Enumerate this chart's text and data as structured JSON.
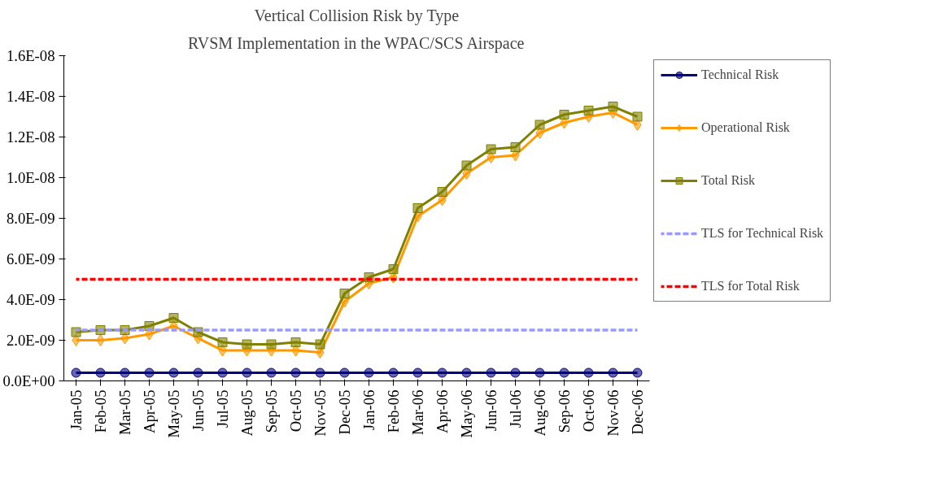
{
  "chart_data": {
    "type": "line",
    "title": "Vertical Collision Risk by Type",
    "subtitle": "RVSM Implementation in the WPAC/SCS Airspace",
    "categories": [
      "Jan-05",
      "Feb-05",
      "Mar-05",
      "Apr-05",
      "May-05",
      "Jun-05",
      "Jul-05",
      "Aug-05",
      "Sep-05",
      "Oct-05",
      "Nov-05",
      "Dec-05",
      "Jan-06",
      "Feb-06",
      "Mar-06",
      "Apr-06",
      "May-06",
      "Jun-06",
      "Jul-06",
      "Aug-06",
      "Sep-06",
      "Oct-06",
      "Nov-06",
      "Dec-06"
    ],
    "series": [
      {
        "name": "Technical Risk",
        "color": "#000080",
        "marker": "circle",
        "line_style": "solid",
        "values": [
          4e-10,
          4e-10,
          4e-10,
          4e-10,
          4e-10,
          4e-10,
          4e-10,
          4e-10,
          4e-10,
          4e-10,
          4e-10,
          4e-10,
          4e-10,
          4e-10,
          4e-10,
          4e-10,
          4e-10,
          4e-10,
          4e-10,
          4e-10,
          4e-10,
          4e-10,
          4e-10,
          4e-10
        ]
      },
      {
        "name": "Operational Risk",
        "color": "#ff9900",
        "marker": "diamond",
        "line_style": "solid",
        "values": [
          2e-09,
          2e-09,
          2.1e-09,
          2.3e-09,
          2.7e-09,
          2.1e-09,
          1.5e-09,
          1.5e-09,
          1.5e-09,
          1.5e-09,
          1.4e-09,
          3.9e-09,
          4.8e-09,
          5.1e-09,
          8.1e-09,
          8.9e-09,
          1.02e-08,
          1.1e-08,
          1.11e-08,
          1.22e-08,
          1.27e-08,
          1.3e-08,
          1.32e-08,
          1.26e-08
        ]
      },
      {
        "name": "Total Risk",
        "color": "#808000",
        "marker": "square",
        "line_style": "solid",
        "values": [
          2.4e-09,
          2.5e-09,
          2.5e-09,
          2.7e-09,
          3.1e-09,
          2.4e-09,
          1.9e-09,
          1.8e-09,
          1.8e-09,
          1.9e-09,
          1.8e-09,
          4.3e-09,
          5.1e-09,
          5.5e-09,
          8.5e-09,
          9.3e-09,
          1.06e-08,
          1.14e-08,
          1.15e-08,
          1.26e-08,
          1.31e-08,
          1.33e-08,
          1.35e-08,
          1.3e-08
        ]
      },
      {
        "name": "TLS for Technical Risk",
        "color": "#9999ff",
        "marker": "none",
        "line_style": "dashed",
        "values": [
          2.5e-09,
          2.5e-09,
          2.5e-09,
          2.5e-09,
          2.5e-09,
          2.5e-09,
          2.5e-09,
          2.5e-09,
          2.5e-09,
          2.5e-09,
          2.5e-09,
          2.5e-09,
          2.5e-09,
          2.5e-09,
          2.5e-09,
          2.5e-09,
          2.5e-09,
          2.5e-09,
          2.5e-09,
          2.5e-09,
          2.5e-09,
          2.5e-09,
          2.5e-09,
          2.5e-09
        ]
      },
      {
        "name": "TLS for Total Risk",
        "color": "#ff0000",
        "marker": "none",
        "line_style": "dashed",
        "values": [
          5e-09,
          5e-09,
          5e-09,
          5e-09,
          5e-09,
          5e-09,
          5e-09,
          5e-09,
          5e-09,
          5e-09,
          5e-09,
          5e-09,
          5e-09,
          5e-09,
          5e-09,
          5e-09,
          5e-09,
          5e-09,
          5e-09,
          5e-09,
          5e-09,
          5e-09,
          5e-09,
          5e-09
        ]
      }
    ],
    "ylim": [
      0,
      1.6e-08
    ],
    "yticks": [
      {
        "value": 0,
        "label": "0.0E+00"
      },
      {
        "value": 2e-09,
        "label": "2.0E-09"
      },
      {
        "value": 4e-09,
        "label": "4.0E-09"
      },
      {
        "value": 6e-09,
        "label": "6.0E-09"
      },
      {
        "value": 8e-09,
        "label": "8.0E-09"
      },
      {
        "value": 1e-08,
        "label": "1.0E-08"
      },
      {
        "value": 1.2e-08,
        "label": "1.2E-08"
      },
      {
        "value": 1.4e-08,
        "label": "1.4E-08"
      },
      {
        "value": 1.6e-08,
        "label": "1.6E-08"
      }
    ],
    "grid": false,
    "legend": "right"
  }
}
